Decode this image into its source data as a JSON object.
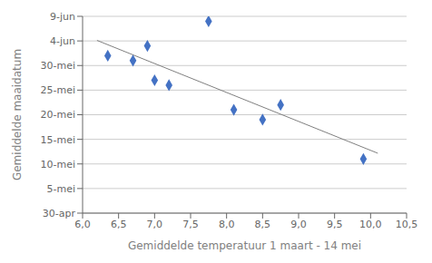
{
  "chart_data": {
    "type": "scatter",
    "xlabel": "Gemiddelde temperatuur 1 maart - 14 mei",
    "ylabel": "Gemiddelde maaidatum",
    "series": [
      {
        "type": "scatter",
        "x": [
          6.35,
          6.7,
          6.9,
          7.0,
          7.2,
          7.75,
          8.1,
          8.5,
          8.75,
          9.9
        ],
        "values": [
          32,
          31,
          34,
          27,
          26,
          39,
          21,
          19,
          22,
          11
        ],
        "color": "#4472C4",
        "marker": "diamond"
      },
      {
        "type": "line",
        "x": [
          6.2,
          10.1
        ],
        "values": [
          35.111,
          12.171
        ],
        "color": "#808080"
      }
    ],
    "xlim": [
      6.0,
      10.5
    ],
    "xticks": [
      {
        "value": 6.0,
        "label": "6,0"
      },
      {
        "value": 6.5,
        "label": "6,5"
      },
      {
        "value": 7.0,
        "label": "7,0"
      },
      {
        "value": 7.5,
        "label": "7,5"
      },
      {
        "value": 8.0,
        "label": "8,0"
      },
      {
        "value": 8.5,
        "label": "8,5"
      },
      {
        "value": 9.0,
        "label": "9,0"
      },
      {
        "value": 9.5,
        "label": "9,5"
      },
      {
        "value": 10.0,
        "label": "10,0"
      },
      {
        "value": 10.5,
        "label": "10,5"
      }
    ],
    "ylim": [
      0,
      40
    ],
    "yticks": [
      {
        "value": 0,
        "label": "30-apr"
      },
      {
        "value": 5,
        "label": "5-mei"
      },
      {
        "value": 10,
        "label": "10-mei"
      },
      {
        "value": 15,
        "label": "15-mei"
      },
      {
        "value": 20,
        "label": "20-mei"
      },
      {
        "value": 25,
        "label": "25-mei"
      },
      {
        "value": 30,
        "label": "30-mei"
      },
      {
        "value": 35,
        "label": "4-jun"
      },
      {
        "value": 40,
        "label": "9-jun"
      }
    ],
    "grid": "y"
  }
}
